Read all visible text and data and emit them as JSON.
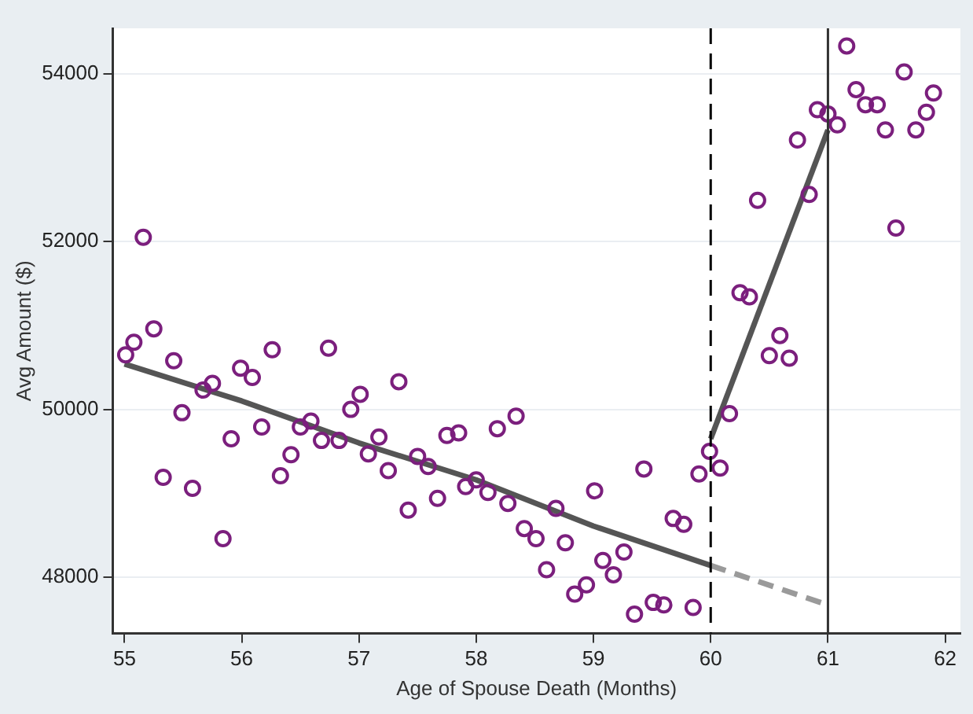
{
  "chart_data": {
    "type": "scatter",
    "xlabel": "Age of Spouse Death (Months)",
    "ylabel": "Avg Amount ($)",
    "xlim": [
      54.9,
      62.13
    ],
    "xticks": [
      55,
      56,
      57,
      58,
      59,
      60,
      61,
      62
    ],
    "ylim": [
      47330,
      54540
    ],
    "yticks": [
      48000,
      50000,
      52000,
      54000
    ],
    "grid": "y",
    "legend": false,
    "marker": "circle",
    "series": [
      {
        "color": "#7b1f7d",
        "x": [
          55.01,
          55.08,
          55.16,
          55.25,
          55.33,
          55.42,
          55.49,
          55.58,
          55.67,
          55.75,
          55.84,
          55.91,
          55.99,
          56.09,
          56.17,
          56.26,
          56.33,
          56.42,
          56.5,
          56.59,
          56.68,
          56.74,
          56.83,
          56.93,
          57.01,
          57.08,
          57.17,
          57.25,
          57.34,
          57.42,
          57.5,
          57.59,
          57.67,
          57.75,
          57.85,
          57.91,
          58.0,
          58.1,
          58.18,
          58.27,
          58.34,
          58.41,
          58.51,
          58.6,
          58.68,
          58.76,
          58.84,
          58.94,
          59.01,
          59.08,
          59.17,
          59.26,
          59.35,
          59.43,
          59.51,
          59.6,
          59.68,
          59.77,
          59.85,
          59.9,
          59.99,
          60.08,
          60.16,
          60.25,
          60.33,
          60.4,
          60.5,
          60.59,
          60.67,
          60.74,
          60.84,
          60.91,
          61.0,
          61.08,
          61.16,
          61.24,
          61.32,
          61.42,
          61.49,
          61.58,
          61.65,
          61.75,
          61.84,
          61.9
        ],
        "values": [
          50650,
          50800,
          52050,
          50960,
          49190,
          50580,
          49960,
          49060,
          50230,
          50310,
          48460,
          49650,
          50490,
          50380,
          49790,
          50710,
          49210,
          49460,
          49790,
          49860,
          49630,
          50730,
          49630,
          50000,
          50180,
          49470,
          49670,
          49270,
          50330,
          48800,
          49440,
          49320,
          48940,
          49690,
          49720,
          49080,
          49160,
          49010,
          49770,
          48880,
          49920,
          48580,
          48460,
          48090,
          48820,
          48410,
          47800,
          47910,
          49030,
          48200,
          48030,
          48300,
          47560,
          49290,
          47700,
          47670,
          48700,
          48630,
          47640,
          49230,
          49500,
          49300,
          49950,
          51390,
          51340,
          52490,
          50640,
          50880,
          50610,
          53210,
          52560,
          53570,
          53520,
          53390,
          54330,
          53810,
          53630,
          53630,
          53330,
          52160,
          54020,
          53330,
          53540,
          53770
        ]
      },
      {
        "type": "line",
        "color": "#555555",
        "marker": "none",
        "line_style": "solid",
        "x": [
          55,
          56,
          57,
          58,
          59,
          60
        ],
        "values": [
          50540,
          50100,
          49600,
          49160,
          48610,
          48140
        ]
      },
      {
        "type": "line",
        "color": "#9a9a9a",
        "marker": "none",
        "line_style": "dashed",
        "x": [
          60,
          61
        ],
        "values": [
          48140,
          47670
        ]
      },
      {
        "type": "line",
        "color": "#555555",
        "marker": "none",
        "line_style": "solid",
        "x": [
          60,
          61
        ],
        "values": [
          49650,
          53330
        ]
      }
    ],
    "ref_lines": [
      {
        "axis": "x",
        "value": 60,
        "color": "#000000",
        "line_style": "dashed"
      },
      {
        "axis": "x",
        "value": 61,
        "color": "#333333",
        "line_style": "solid"
      }
    ]
  }
}
